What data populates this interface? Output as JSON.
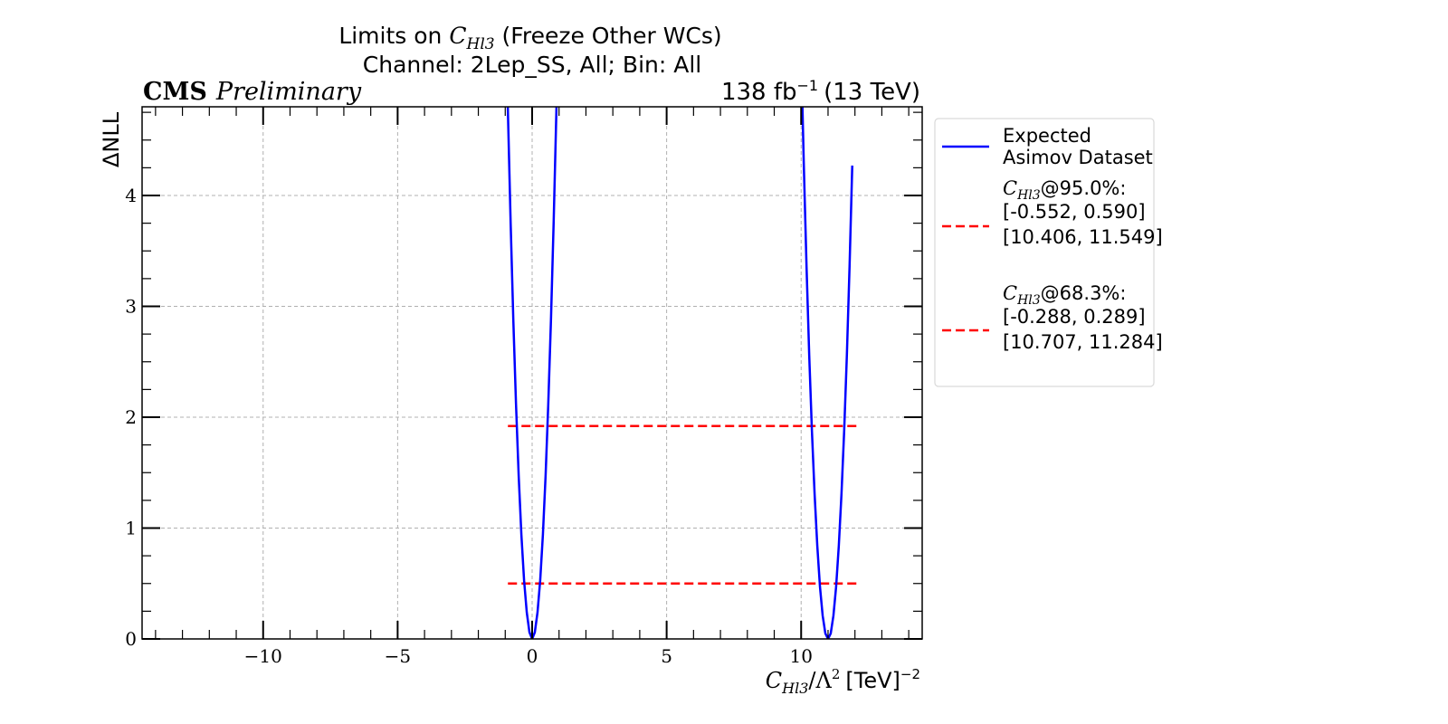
{
  "chart_data": {
    "type": "line",
    "title_line1_prefix": "Limits on ",
    "title_symbol_base": "C",
    "title_symbol_sub": "Hl3",
    "title_line1_suffix": " (Freeze Other WCs)",
    "title_line2": "Channel: 2Lep_SS, All; Bin: All",
    "experiment_label": "CMS",
    "status_label": "Preliminary",
    "lumi_label": "138 fb",
    "lumi_exponent": "−1",
    "energy_label": "(13 TeV)",
    "xlabel_base": "C",
    "xlabel_sub": "Hl3",
    "xlabel_divider": "/Λ",
    "xlabel_square": "2",
    "xlabel_units": "[TeV]",
    "xlabel_units_exp": "−2",
    "ylabel": "ΔNLL",
    "xlim": [
      -14.5,
      14.5
    ],
    "ylim": [
      0,
      4.8
    ],
    "x_ticks": [
      -10,
      -5,
      0,
      5,
      10
    ],
    "x_tick_labels": [
      "−10",
      "−5",
      "0",
      "5",
      "10"
    ],
    "y_ticks": [
      0,
      1,
      2,
      3,
      4
    ],
    "y_tick_labels": [
      "0",
      "1",
      "2",
      "3",
      "4"
    ],
    "grid": true,
    "legend_position": "outside-right",
    "series": [
      {
        "name": "Expected Asimov Dataset",
        "color": "#0000ff",
        "style": "solid",
        "x": [
          -1.0,
          -0.9,
          -0.8,
          -0.7,
          -0.6,
          -0.5,
          -0.4,
          -0.3,
          -0.2,
          -0.1,
          0.0,
          0.1,
          0.2,
          0.3,
          0.4,
          0.5,
          0.6,
          0.7,
          0.8,
          0.9,
          1.0,
          10.0,
          10.1,
          10.2,
          10.3,
          10.4,
          10.5,
          10.6,
          10.7,
          10.8,
          10.9,
          11.0,
          11.1,
          11.2,
          11.3,
          11.4,
          11.5,
          11.6,
          11.7,
          11.8,
          11.9
        ],
        "y": [
          5.9,
          4.75,
          3.76,
          2.88,
          2.12,
          1.47,
          0.94,
          0.53,
          0.24,
          0.06,
          0.0,
          0.06,
          0.24,
          0.53,
          0.94,
          1.47,
          2.12,
          2.88,
          3.76,
          4.75,
          5.9,
          5.3,
          4.27,
          3.36,
          2.56,
          1.88,
          1.31,
          0.84,
          0.47,
          0.21,
          0.05,
          0.0,
          0.05,
          0.21,
          0.47,
          0.84,
          1.31,
          1.88,
          2.56,
          3.36,
          4.27
        ]
      }
    ],
    "reference_lines": [
      {
        "name": "95.0% CL",
        "y": 1.92,
        "x_range": [
          -0.9,
          12.2
        ],
        "color": "#ff0000",
        "style": "dashed"
      },
      {
        "name": "68.3% CL",
        "y": 0.5,
        "x_range": [
          -0.9,
          12.2
        ],
        "color": "#ff0000",
        "style": "dashed"
      }
    ],
    "legend": {
      "expected_line1": "Expected",
      "expected_line2": "Asimov Dataset",
      "cl95_symbol_base": "C",
      "cl95_symbol_sub": "Hl3",
      "cl95_level": "@95.0%:",
      "cl95_interval1": "[-0.552, 0.590]",
      "cl95_interval2": "[10.406, 11.549]",
      "cl68_symbol_base": "C",
      "cl68_symbol_sub": "Hl3",
      "cl68_level": "@68.3%:",
      "cl68_interval1": "[-0.288, 0.289]",
      "cl68_interval2": "[10.707, 11.284]"
    }
  }
}
